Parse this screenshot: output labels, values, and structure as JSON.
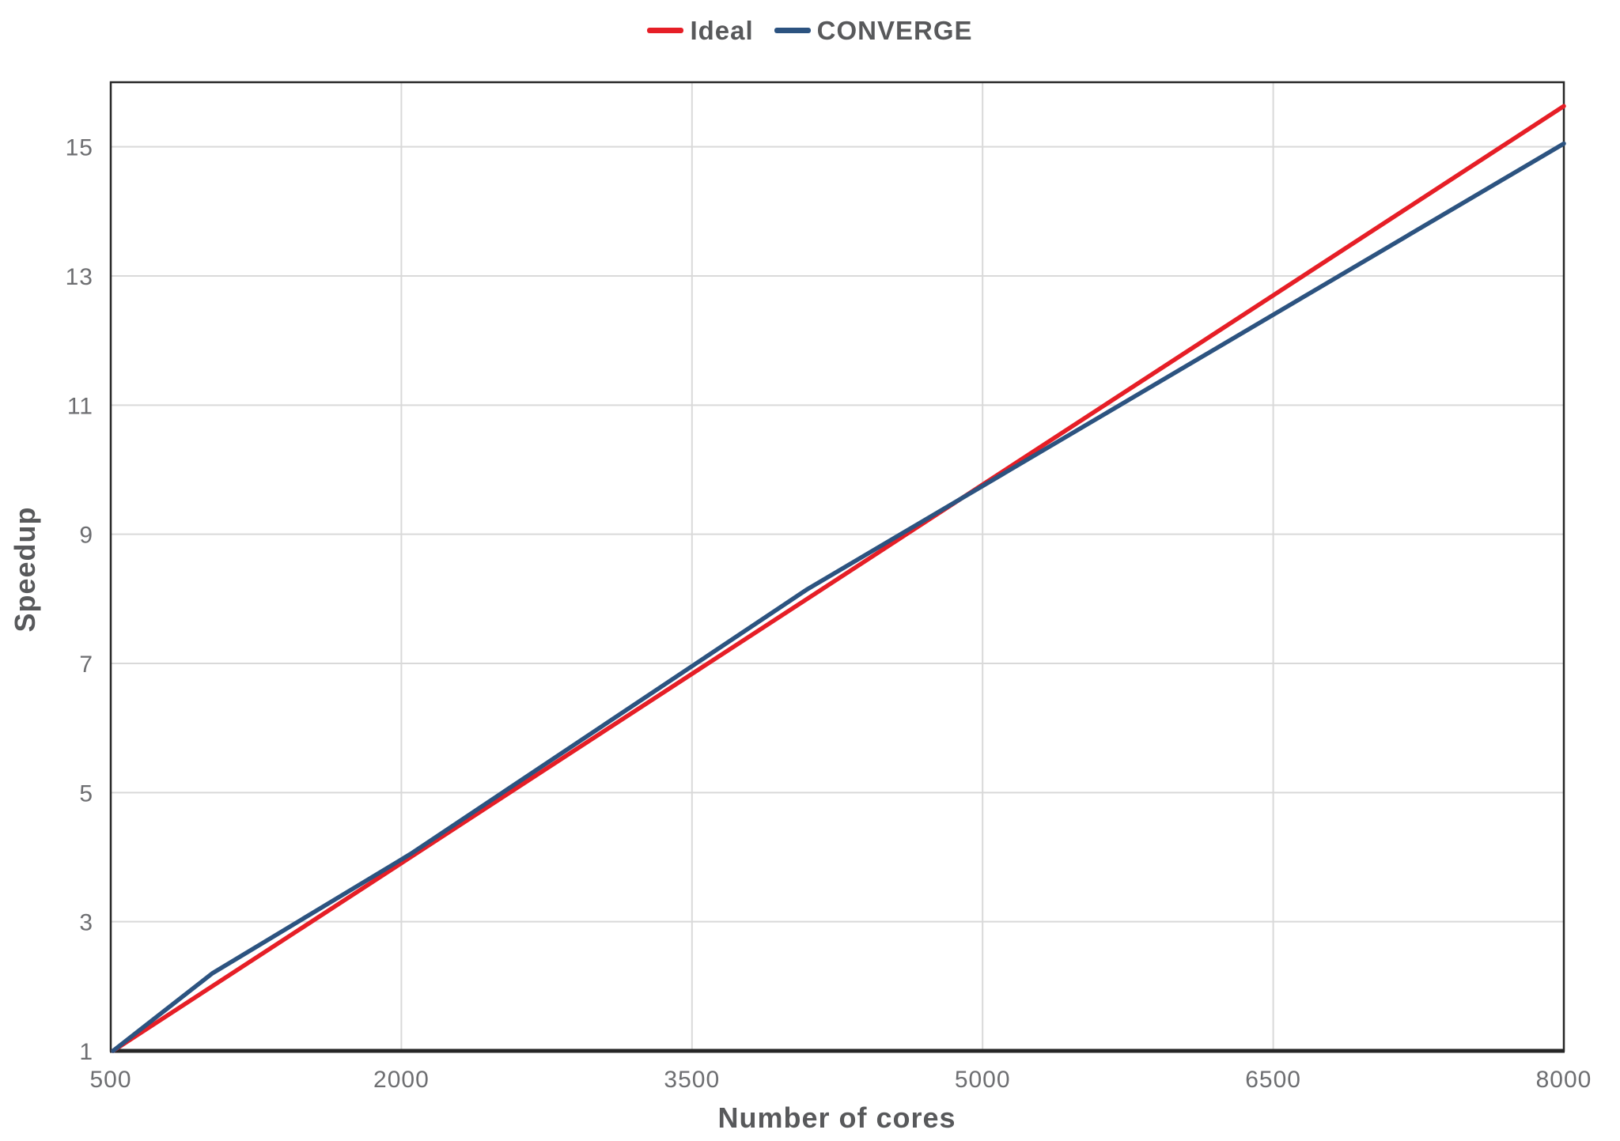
{
  "legend": {
    "items": [
      {
        "label": "Ideal",
        "color": "#e61e26"
      },
      {
        "label": "CONVERGE",
        "color": "#2c5380"
      }
    ]
  },
  "chart_data": {
    "type": "line",
    "title": "",
    "xlabel": "Number of cores",
    "ylabel": "Speedup",
    "xlim": [
      500,
      8000
    ],
    "ylim": [
      1,
      16
    ],
    "x_tick_labels": [
      "500",
      "2000",
      "3500",
      "5000",
      "6500",
      "8000"
    ],
    "x_tick_values": [
      500,
      2000,
      3500,
      5000,
      6500,
      8000
    ],
    "y_tick_labels": [
      "1",
      "3",
      "5",
      "7",
      "9",
      "11",
      "13",
      "15"
    ],
    "y_tick_values": [
      1,
      3,
      5,
      7,
      9,
      11,
      13,
      15
    ],
    "x_gridlines": [
      2000,
      3500,
      5000,
      6500
    ],
    "y_gridlines": [
      3,
      5,
      7,
      9,
      11,
      13,
      15
    ],
    "grid": true,
    "legend_position": "top-center",
    "series": [
      {
        "name": "Ideal",
        "color": "#e61e26",
        "x": [
          512,
          8000
        ],
        "y": [
          1.0,
          15.63
        ]
      },
      {
        "name": "CONVERGE",
        "color": "#2c5380",
        "x": [
          512,
          1024,
          2048,
          4096,
          8000
        ],
        "y": [
          1.0,
          2.2,
          4.05,
          8.15,
          15.05
        ]
      }
    ]
  },
  "colors": {
    "ideal_line": "#e61e26",
    "converge_line": "#2c5380",
    "gridline": "#d9d9d9",
    "axis_border": "#262626",
    "tick_text": "#6d6e71",
    "title_text": "#58595b",
    "background": "#ffffff"
  }
}
